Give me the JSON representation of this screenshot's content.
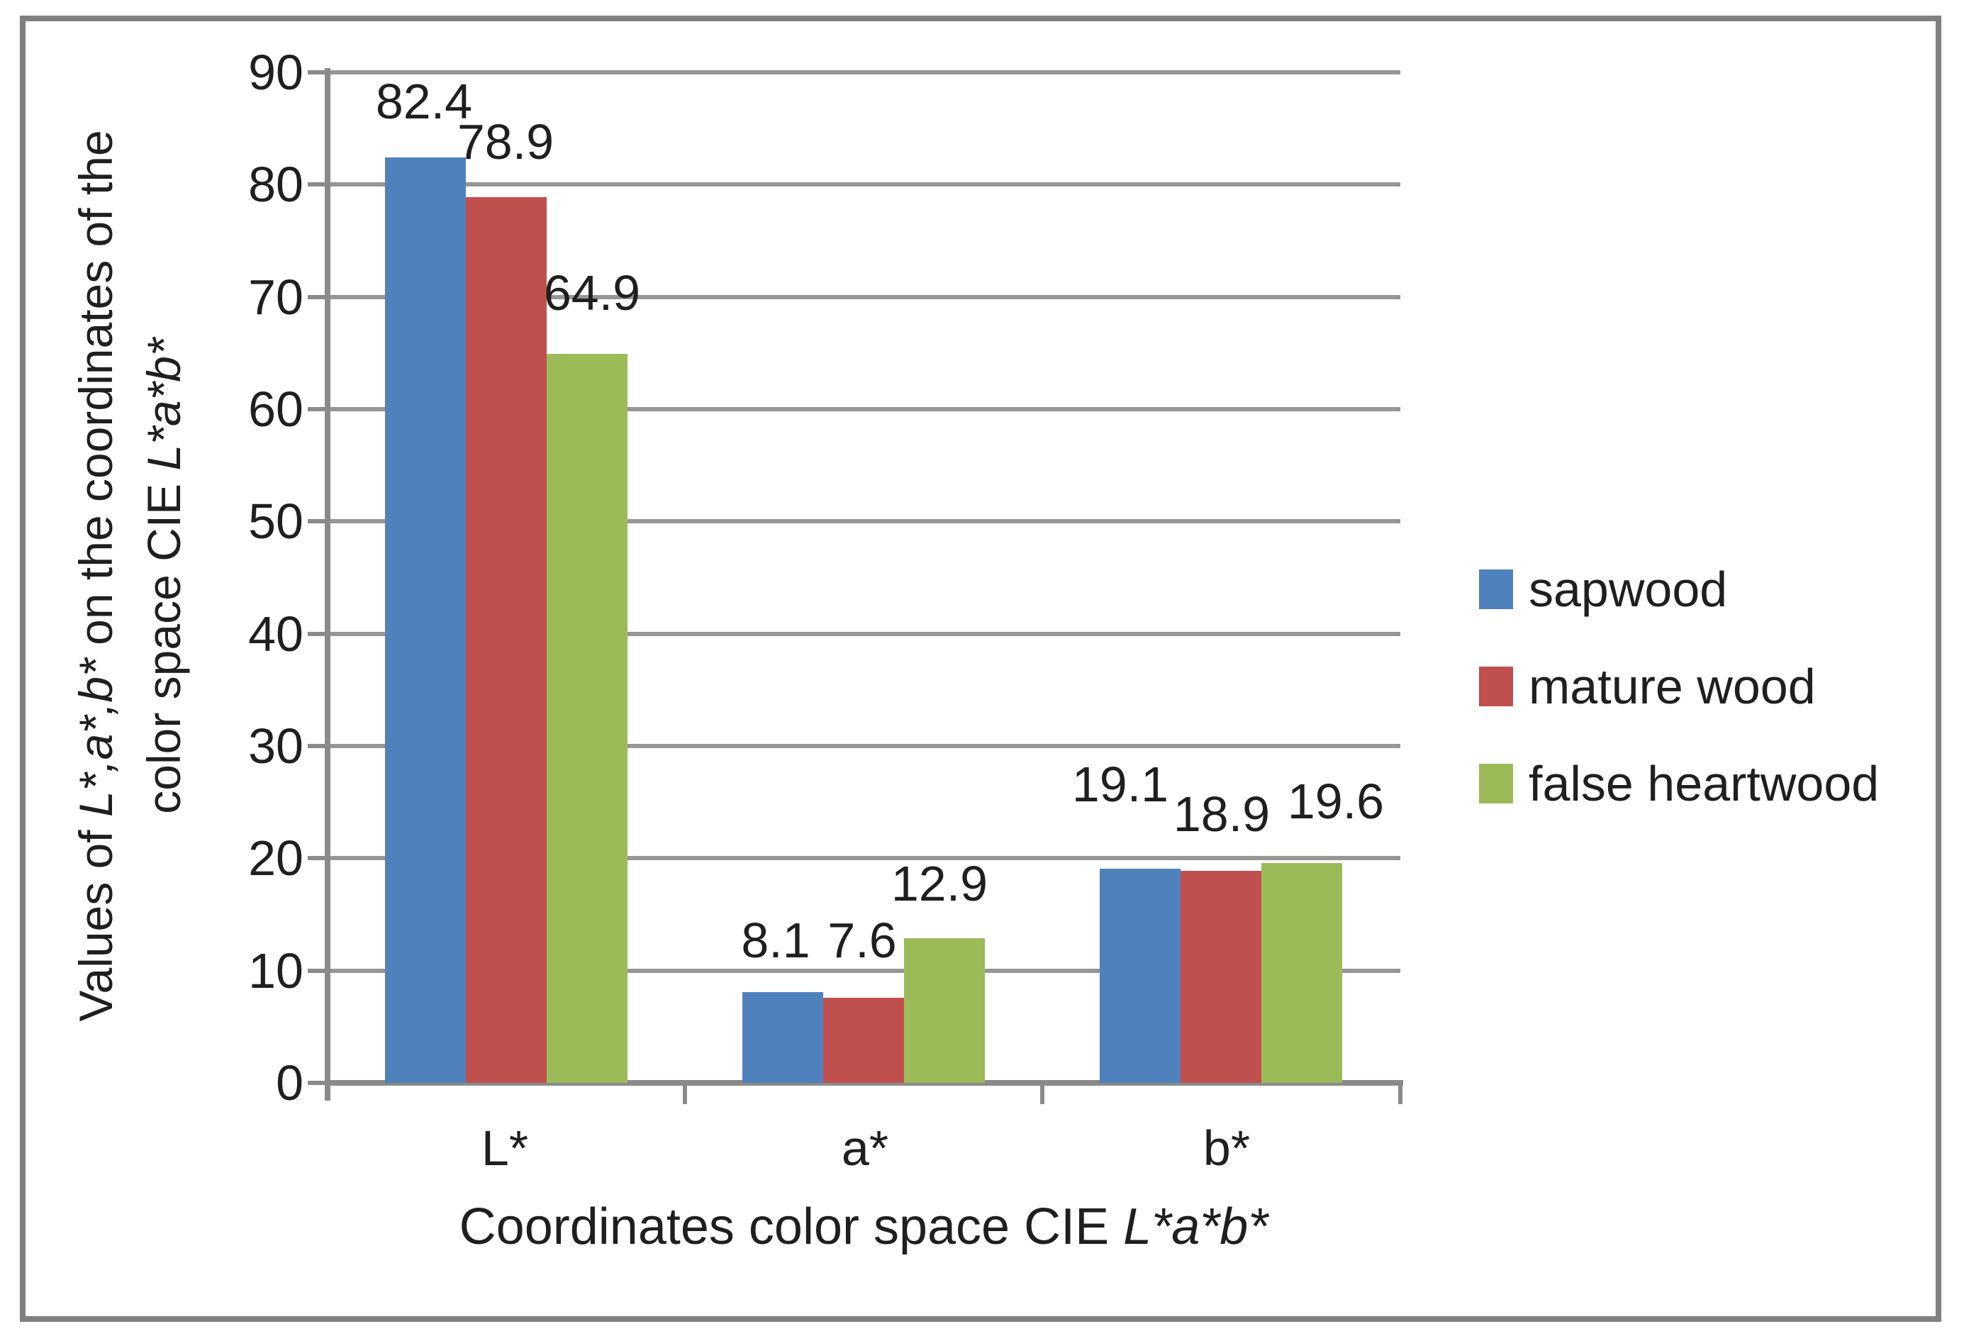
{
  "chart_data": {
    "type": "bar",
    "categories": [
      "L*",
      "a*",
      "b*"
    ],
    "series": [
      {
        "name": "sapwood",
        "color": "#4F81BD",
        "values": [
          82.4,
          8.1,
          19.1
        ]
      },
      {
        "name": "mature wood",
        "color": "#C0504D",
        "values": [
          78.9,
          7.6,
          18.9
        ]
      },
      {
        "name": "false heartwood",
        "color": "#9BBB59",
        "values": [
          64.9,
          12.9,
          19.6
        ]
      }
    ],
    "data_labels": [
      [
        "82.4",
        "78.9",
        "64.9"
      ],
      [
        "8.1",
        "7.6",
        "12.9"
      ],
      [
        "19.1",
        "18.9",
        "19.6"
      ]
    ],
    "y_axis": {
      "min": 0,
      "max": 90,
      "step": 10,
      "ticks": [
        0,
        10,
        20,
        30,
        40,
        50,
        60,
        70,
        80,
        90
      ]
    },
    "x_title": {
      "parts": [
        {
          "text": "Coordinates color space CIE ",
          "italic": false
        },
        {
          "text": "L*a*b*",
          "italic": true
        }
      ]
    },
    "y_title": {
      "lines": [
        {
          "parts": [
            {
              "text": "Values of ",
              "italic": false
            },
            {
              "text": "L*,a*,b*",
              "italic": true
            },
            {
              "text": " on the coordinates of the",
              "italic": false
            }
          ]
        },
        {
          "parts": [
            {
              "text": "color space CIE ",
              "italic": false
            },
            {
              "text": "L*a*b*",
              "italic": true
            }
          ]
        }
      ]
    },
    "legend_position": "right",
    "grid": true,
    "colors": {
      "gridline": "#969696",
      "axis": "#8a8a8a",
      "frame": "#808080",
      "text": "#1f1f1f",
      "background": "#ffffff"
    }
  }
}
